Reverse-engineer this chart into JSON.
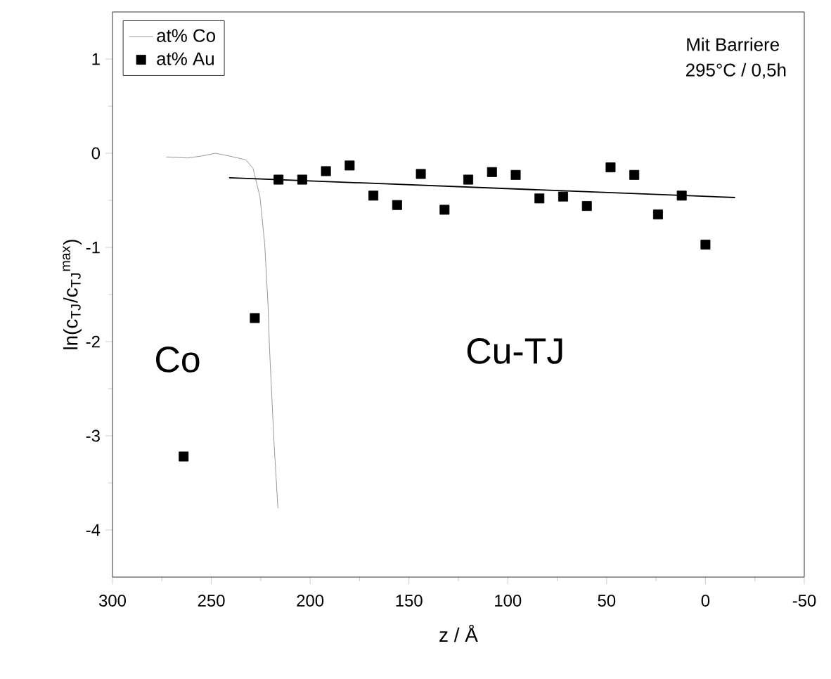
{
  "chart_data": {
    "type": "scatter",
    "xlabel": "z / Å",
    "ylabel": "ln(c$_{TJ}$/c$_{TJ}$$^{max}$)",
    "xlim": [
      300,
      -50
    ],
    "ylim": [
      -4.5,
      1.5
    ],
    "xticks": [
      300,
      250,
      200,
      150,
      100,
      50,
      0,
      -50
    ],
    "yticks": [
      -4,
      -3,
      -2,
      -1,
      0,
      1
    ],
    "legend": "top left",
    "annotations": [
      "Mit Barriere",
      "295°C / 0,5h",
      "Co",
      "Cu-TJ"
    ],
    "series": [
      {
        "name": "at% Co",
        "type": "line",
        "color": "#999999",
        "marker": "none",
        "x": [
          272.8,
          262,
          255,
          247.9,
          240.8,
          232.5,
          228.9,
          225.4,
          223,
          221.3,
          220.6,
          218.2,
          216.3
        ],
        "values": [
          -0.04,
          -0.05,
          -0.03,
          0.0,
          -0.03,
          -0.07,
          -0.16,
          -0.46,
          -0.96,
          -1.61,
          -2.05,
          -3.1,
          -3.77
        ]
      },
      {
        "name": "at% Au",
        "color": "#000000",
        "marker": "square",
        "x": [
          264,
          228,
          216,
          204,
          192,
          180,
          168,
          156,
          144,
          132,
          120,
          108,
          96,
          84,
          72,
          60,
          48,
          36,
          24,
          12,
          0
        ],
        "values": [
          -3.22,
          -1.75,
          -0.28,
          -0.28,
          -0.19,
          -0.13,
          -0.45,
          -0.55,
          -0.22,
          -0.6,
          -0.28,
          -0.2,
          -0.23,
          -0.48,
          -0.46,
          -0.56,
          -0.15,
          -0.23,
          -0.65,
          -0.45,
          -0.97
        ]
      },
      {
        "type": "line",
        "color": "#000000",
        "marker": "none",
        "x": [
          241,
          -15
        ],
        "values": [
          -0.26,
          -0.47
        ]
      }
    ]
  }
}
